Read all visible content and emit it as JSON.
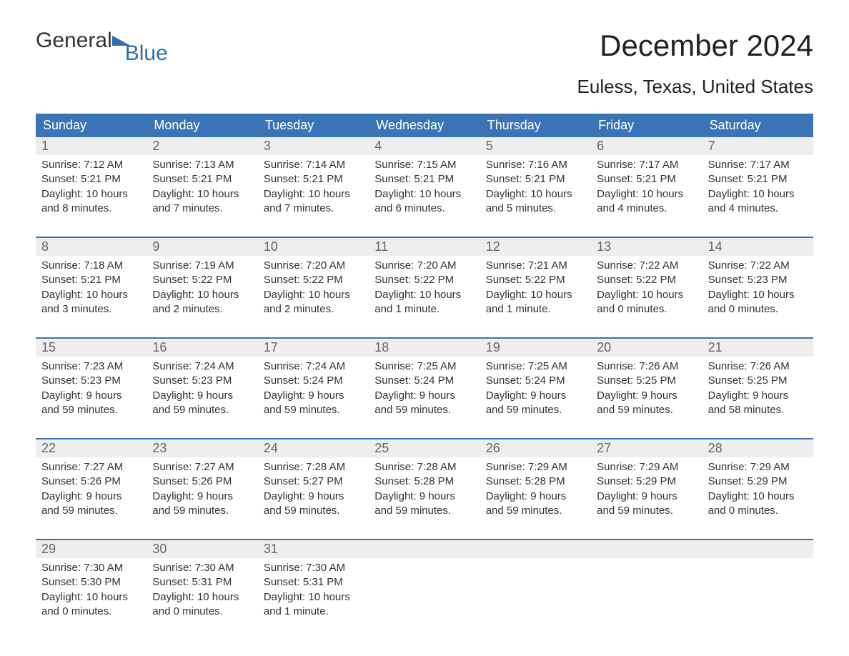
{
  "logo": {
    "word1": "General",
    "word2": "Blue"
  },
  "title": "December 2024",
  "location": "Euless, Texas, United States",
  "colors": {
    "brand_blue": "#3b74b4",
    "logo_blue": "#2f6eab",
    "daynum_bg": "#eeeeee",
    "daynum_text": "#666666",
    "body_text": "#333333",
    "background": "#ffffff"
  },
  "weekdays": [
    "Sunday",
    "Monday",
    "Tuesday",
    "Wednesday",
    "Thursday",
    "Friday",
    "Saturday"
  ],
  "weeks": [
    [
      {
        "n": "1",
        "sunrise": "Sunrise: 7:12 AM",
        "sunset": "Sunset: 5:21 PM",
        "daylight": "Daylight: 10 hours and 8 minutes."
      },
      {
        "n": "2",
        "sunrise": "Sunrise: 7:13 AM",
        "sunset": "Sunset: 5:21 PM",
        "daylight": "Daylight: 10 hours and 7 minutes."
      },
      {
        "n": "3",
        "sunrise": "Sunrise: 7:14 AM",
        "sunset": "Sunset: 5:21 PM",
        "daylight": "Daylight: 10 hours and 7 minutes."
      },
      {
        "n": "4",
        "sunrise": "Sunrise: 7:15 AM",
        "sunset": "Sunset: 5:21 PM",
        "daylight": "Daylight: 10 hours and 6 minutes."
      },
      {
        "n": "5",
        "sunrise": "Sunrise: 7:16 AM",
        "sunset": "Sunset: 5:21 PM",
        "daylight": "Daylight: 10 hours and 5 minutes."
      },
      {
        "n": "6",
        "sunrise": "Sunrise: 7:17 AM",
        "sunset": "Sunset: 5:21 PM",
        "daylight": "Daylight: 10 hours and 4 minutes."
      },
      {
        "n": "7",
        "sunrise": "Sunrise: 7:17 AM",
        "sunset": "Sunset: 5:21 PM",
        "daylight": "Daylight: 10 hours and 4 minutes."
      }
    ],
    [
      {
        "n": "8",
        "sunrise": "Sunrise: 7:18 AM",
        "sunset": "Sunset: 5:21 PM",
        "daylight": "Daylight: 10 hours and 3 minutes."
      },
      {
        "n": "9",
        "sunrise": "Sunrise: 7:19 AM",
        "sunset": "Sunset: 5:22 PM",
        "daylight": "Daylight: 10 hours and 2 minutes."
      },
      {
        "n": "10",
        "sunrise": "Sunrise: 7:20 AM",
        "sunset": "Sunset: 5:22 PM",
        "daylight": "Daylight: 10 hours and 2 minutes."
      },
      {
        "n": "11",
        "sunrise": "Sunrise: 7:20 AM",
        "sunset": "Sunset: 5:22 PM",
        "daylight": "Daylight: 10 hours and 1 minute."
      },
      {
        "n": "12",
        "sunrise": "Sunrise: 7:21 AM",
        "sunset": "Sunset: 5:22 PM",
        "daylight": "Daylight: 10 hours and 1 minute."
      },
      {
        "n": "13",
        "sunrise": "Sunrise: 7:22 AM",
        "sunset": "Sunset: 5:22 PM",
        "daylight": "Daylight: 10 hours and 0 minutes."
      },
      {
        "n": "14",
        "sunrise": "Sunrise: 7:22 AM",
        "sunset": "Sunset: 5:23 PM",
        "daylight": "Daylight: 10 hours and 0 minutes."
      }
    ],
    [
      {
        "n": "15",
        "sunrise": "Sunrise: 7:23 AM",
        "sunset": "Sunset: 5:23 PM",
        "daylight": "Daylight: 9 hours and 59 minutes."
      },
      {
        "n": "16",
        "sunrise": "Sunrise: 7:24 AM",
        "sunset": "Sunset: 5:23 PM",
        "daylight": "Daylight: 9 hours and 59 minutes."
      },
      {
        "n": "17",
        "sunrise": "Sunrise: 7:24 AM",
        "sunset": "Sunset: 5:24 PM",
        "daylight": "Daylight: 9 hours and 59 minutes."
      },
      {
        "n": "18",
        "sunrise": "Sunrise: 7:25 AM",
        "sunset": "Sunset: 5:24 PM",
        "daylight": "Daylight: 9 hours and 59 minutes."
      },
      {
        "n": "19",
        "sunrise": "Sunrise: 7:25 AM",
        "sunset": "Sunset: 5:24 PM",
        "daylight": "Daylight: 9 hours and 59 minutes."
      },
      {
        "n": "20",
        "sunrise": "Sunrise: 7:26 AM",
        "sunset": "Sunset: 5:25 PM",
        "daylight": "Daylight: 9 hours and 59 minutes."
      },
      {
        "n": "21",
        "sunrise": "Sunrise: 7:26 AM",
        "sunset": "Sunset: 5:25 PM",
        "daylight": "Daylight: 9 hours and 58 minutes."
      }
    ],
    [
      {
        "n": "22",
        "sunrise": "Sunrise: 7:27 AM",
        "sunset": "Sunset: 5:26 PM",
        "daylight": "Daylight: 9 hours and 59 minutes."
      },
      {
        "n": "23",
        "sunrise": "Sunrise: 7:27 AM",
        "sunset": "Sunset: 5:26 PM",
        "daylight": "Daylight: 9 hours and 59 minutes."
      },
      {
        "n": "24",
        "sunrise": "Sunrise: 7:28 AM",
        "sunset": "Sunset: 5:27 PM",
        "daylight": "Daylight: 9 hours and 59 minutes."
      },
      {
        "n": "25",
        "sunrise": "Sunrise: 7:28 AM",
        "sunset": "Sunset: 5:28 PM",
        "daylight": "Daylight: 9 hours and 59 minutes."
      },
      {
        "n": "26",
        "sunrise": "Sunrise: 7:29 AM",
        "sunset": "Sunset: 5:28 PM",
        "daylight": "Daylight: 9 hours and 59 minutes."
      },
      {
        "n": "27",
        "sunrise": "Sunrise: 7:29 AM",
        "sunset": "Sunset: 5:29 PM",
        "daylight": "Daylight: 9 hours and 59 minutes."
      },
      {
        "n": "28",
        "sunrise": "Sunrise: 7:29 AM",
        "sunset": "Sunset: 5:29 PM",
        "daylight": "Daylight: 10 hours and 0 minutes."
      }
    ],
    [
      {
        "n": "29",
        "sunrise": "Sunrise: 7:30 AM",
        "sunset": "Sunset: 5:30 PM",
        "daylight": "Daylight: 10 hours and 0 minutes."
      },
      {
        "n": "30",
        "sunrise": "Sunrise: 7:30 AM",
        "sunset": "Sunset: 5:31 PM",
        "daylight": "Daylight: 10 hours and 0 minutes."
      },
      {
        "n": "31",
        "sunrise": "Sunrise: 7:30 AM",
        "sunset": "Sunset: 5:31 PM",
        "daylight": "Daylight: 10 hours and 1 minute."
      },
      null,
      null,
      null,
      null
    ]
  ]
}
